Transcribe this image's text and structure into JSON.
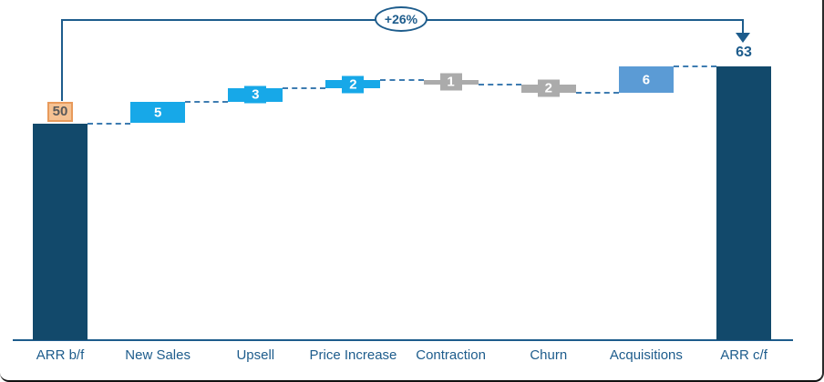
{
  "chart_data": {
    "type": "bar",
    "subtype": "waterfall",
    "title": "",
    "categories": [
      "ARR b/f",
      "New Sales",
      "Upsell",
      "Price Increase",
      "Contraction",
      "Churn",
      "Acquisitions",
      "ARR c/f"
    ],
    "steps": [
      {
        "label": "ARR b/f",
        "value": 50,
        "kind": "total-start",
        "color_key": "navy",
        "display": "50"
      },
      {
        "label": "New Sales",
        "value": 5,
        "kind": "increase",
        "color_key": "cyan",
        "display": "5"
      },
      {
        "label": "Upsell",
        "value": 3,
        "kind": "increase",
        "color_key": "cyan",
        "display": "3"
      },
      {
        "label": "Price Increase",
        "value": 2,
        "kind": "increase",
        "color_key": "cyan",
        "display": "2"
      },
      {
        "label": "Contraction",
        "value": -1,
        "kind": "decrease",
        "color_key": "gray",
        "display": "1"
      },
      {
        "label": "Churn",
        "value": -2,
        "kind": "decrease",
        "color_key": "gray",
        "display": "2"
      },
      {
        "label": "Acquisitions",
        "value": 6,
        "kind": "increase",
        "color_key": "blue",
        "display": "6"
      },
      {
        "label": "ARR c/f",
        "value": 63,
        "kind": "total-end",
        "color_key": "navy",
        "display": "63"
      }
    ],
    "cumulative": [
      50,
      55,
      58,
      60,
      59,
      57,
      63,
      63
    ],
    "growth_annotation": "+26%",
    "ylim": [
      0,
      63
    ],
    "grid": false,
    "legend": false,
    "colors": {
      "navy": "#12496B",
      "cyan": "#17A8E8",
      "blue": "#5B9BD5",
      "gray": "#ABABAB",
      "axis": "#1D5C8C",
      "connector": "#3E7CB1",
      "arrow": "#1D5C8C",
      "start_tag_fill": "#F5C293",
      "start_tag_border": "#E89A5B",
      "start_tag_text": "#595959",
      "label_text": "#1D5C8C"
    }
  }
}
